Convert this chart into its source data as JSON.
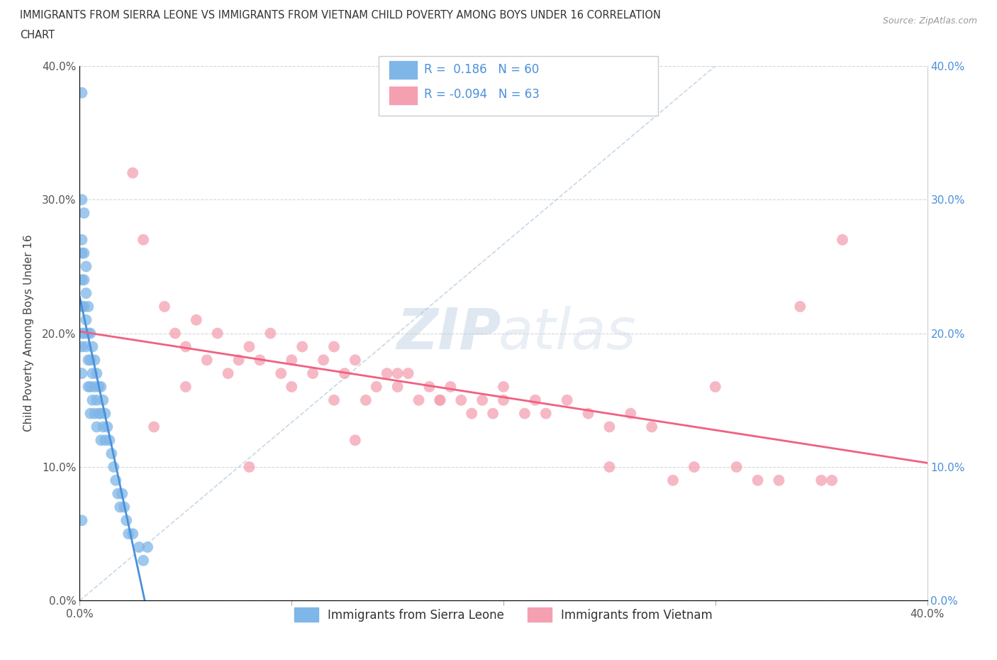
{
  "title_line1": "IMMIGRANTS FROM SIERRA LEONE VS IMMIGRANTS FROM VIETNAM CHILD POVERTY AMONG BOYS UNDER 16 CORRELATION",
  "title_line2": "CHART",
  "source": "Source: ZipAtlas.com",
  "ylabel": "Child Poverty Among Boys Under 16",
  "r_sierra": 0.186,
  "n_sierra": 60,
  "r_vietnam": -0.094,
  "n_vietnam": 63,
  "xlim": [
    0.0,
    0.4
  ],
  "ylim": [
    0.0,
    0.4
  ],
  "xticks": [
    0.0,
    0.1,
    0.2,
    0.3,
    0.4
  ],
  "yticks": [
    0.0,
    0.1,
    0.2,
    0.3,
    0.4
  ],
  "color_sierra": "#7EB6E8",
  "color_vietnam": "#F4A0B0",
  "color_sierra_line": "#4A90D9",
  "color_vietnam_line": "#F06080",
  "background_color": "#FFFFFF",
  "watermark_zip": "ZIP",
  "watermark_atlas": "atlas",
  "legend_label_sierra": "Immigrants from Sierra Leone",
  "legend_label_vietnam": "Immigrants from Vietnam",
  "sierra_leone_x": [
    0.001,
    0.001,
    0.001,
    0.001,
    0.001,
    0.001,
    0.001,
    0.001,
    0.001,
    0.002,
    0.002,
    0.002,
    0.002,
    0.002,
    0.003,
    0.003,
    0.003,
    0.003,
    0.004,
    0.004,
    0.004,
    0.004,
    0.005,
    0.005,
    0.005,
    0.005,
    0.006,
    0.006,
    0.006,
    0.007,
    0.007,
    0.007,
    0.008,
    0.008,
    0.008,
    0.009,
    0.009,
    0.01,
    0.01,
    0.01,
    0.011,
    0.011,
    0.012,
    0.012,
    0.013,
    0.014,
    0.015,
    0.016,
    0.017,
    0.018,
    0.019,
    0.02,
    0.021,
    0.022,
    0.023,
    0.025,
    0.028,
    0.03,
    0.032,
    0.001
  ],
  "sierra_leone_y": [
    0.38,
    0.3,
    0.27,
    0.26,
    0.24,
    0.22,
    0.2,
    0.19,
    0.17,
    0.29,
    0.26,
    0.24,
    0.22,
    0.2,
    0.25,
    0.23,
    0.21,
    0.19,
    0.22,
    0.2,
    0.18,
    0.16,
    0.2,
    0.18,
    0.16,
    0.14,
    0.19,
    0.17,
    0.15,
    0.18,
    0.16,
    0.14,
    0.17,
    0.15,
    0.13,
    0.16,
    0.14,
    0.16,
    0.14,
    0.12,
    0.15,
    0.13,
    0.14,
    0.12,
    0.13,
    0.12,
    0.11,
    0.1,
    0.09,
    0.08,
    0.07,
    0.08,
    0.07,
    0.06,
    0.05,
    0.05,
    0.04,
    0.03,
    0.04,
    0.06
  ],
  "vietnam_x": [
    0.025,
    0.03,
    0.04,
    0.045,
    0.05,
    0.055,
    0.06,
    0.065,
    0.07,
    0.075,
    0.08,
    0.085,
    0.09,
    0.095,
    0.1,
    0.105,
    0.11,
    0.115,
    0.12,
    0.125,
    0.13,
    0.135,
    0.14,
    0.145,
    0.15,
    0.155,
    0.16,
    0.165,
    0.17,
    0.175,
    0.18,
    0.185,
    0.19,
    0.195,
    0.2,
    0.21,
    0.215,
    0.22,
    0.23,
    0.24,
    0.25,
    0.26,
    0.27,
    0.28,
    0.29,
    0.3,
    0.31,
    0.32,
    0.33,
    0.34,
    0.35,
    0.355,
    0.36,
    0.1,
    0.15,
    0.05,
    0.2,
    0.25,
    0.12,
    0.08,
    0.035,
    0.13,
    0.17
  ],
  "vietnam_y": [
    0.32,
    0.27,
    0.22,
    0.2,
    0.19,
    0.21,
    0.18,
    0.2,
    0.17,
    0.18,
    0.19,
    0.18,
    0.2,
    0.17,
    0.18,
    0.19,
    0.17,
    0.18,
    0.19,
    0.17,
    0.18,
    0.15,
    0.16,
    0.17,
    0.16,
    0.17,
    0.15,
    0.16,
    0.15,
    0.16,
    0.15,
    0.14,
    0.15,
    0.14,
    0.15,
    0.14,
    0.15,
    0.14,
    0.15,
    0.14,
    0.13,
    0.14,
    0.13,
    0.09,
    0.1,
    0.16,
    0.1,
    0.09,
    0.09,
    0.22,
    0.09,
    0.09,
    0.27,
    0.16,
    0.17,
    0.16,
    0.16,
    0.1,
    0.15,
    0.1,
    0.13,
    0.12,
    0.15
  ]
}
